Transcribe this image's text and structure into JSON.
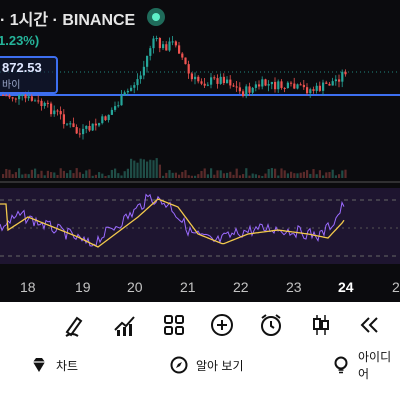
{
  "header": {
    "title": "· 1시간 · BINANCE",
    "change": "1.23%)"
  },
  "price_label": {
    "value": "872.53",
    "label": "바이"
  },
  "x_axis": [
    "18",
    "19",
    "20",
    "21",
    "22",
    "23",
    "24",
    "2"
  ],
  "toolbar": [
    {
      "name": "draw-tool-button",
      "icon": "pen-icon"
    },
    {
      "name": "indicators-button",
      "icon": "indicator-chart-icon"
    },
    {
      "name": "layouts-button",
      "icon": "grid-icon"
    },
    {
      "name": "add-button",
      "icon": "plus-circle-icon"
    },
    {
      "name": "alert-button",
      "icon": "alarm-clock-icon"
    },
    {
      "name": "chart-type-button",
      "icon": "candlestick-icon"
    },
    {
      "name": "replay-button",
      "icon": "rewind-icon"
    }
  ],
  "nav": {
    "chart": "차트",
    "explore": "알아 보기",
    "ideas": "아이디어"
  },
  "colors": {
    "up": "#26a69a",
    "down": "#ef5350",
    "accent": "#3d6ff0",
    "rsi": "#9b6bff",
    "rsi_ma": "#f2c94c"
  }
}
